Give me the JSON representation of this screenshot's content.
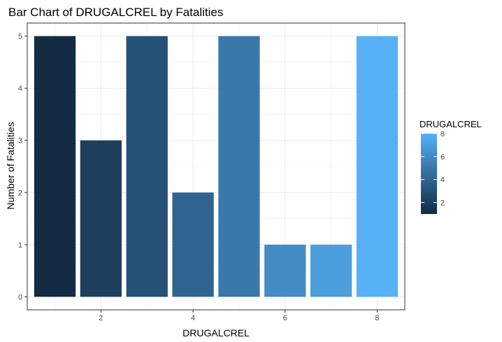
{
  "chart_data": {
    "type": "bar",
    "title": "Bar Chart of DRUGALCREL by Fatalities",
    "xlabel": "DRUGALCREL",
    "ylabel": "Number of Fatalities",
    "x": [
      1,
      2,
      3,
      4,
      5,
      6,
      7,
      8
    ],
    "values": [
      5,
      3,
      5,
      2,
      5,
      1,
      1,
      5
    ],
    "xlim": [
      0.4,
      8.6
    ],
    "ylim": [
      -0.25,
      5.25
    ],
    "x_ticks": [
      2,
      4,
      6,
      8
    ],
    "y_ticks": [
      0,
      1,
      2,
      3,
      4,
      5
    ],
    "grid": true,
    "legend": {
      "title": "DRUGALCREL",
      "placement": "right",
      "range": [
        1,
        8
      ],
      "ticks": [
        2,
        4,
        6,
        8
      ],
      "color_low": "#132B43",
      "color_high": "#56B1F7"
    }
  }
}
